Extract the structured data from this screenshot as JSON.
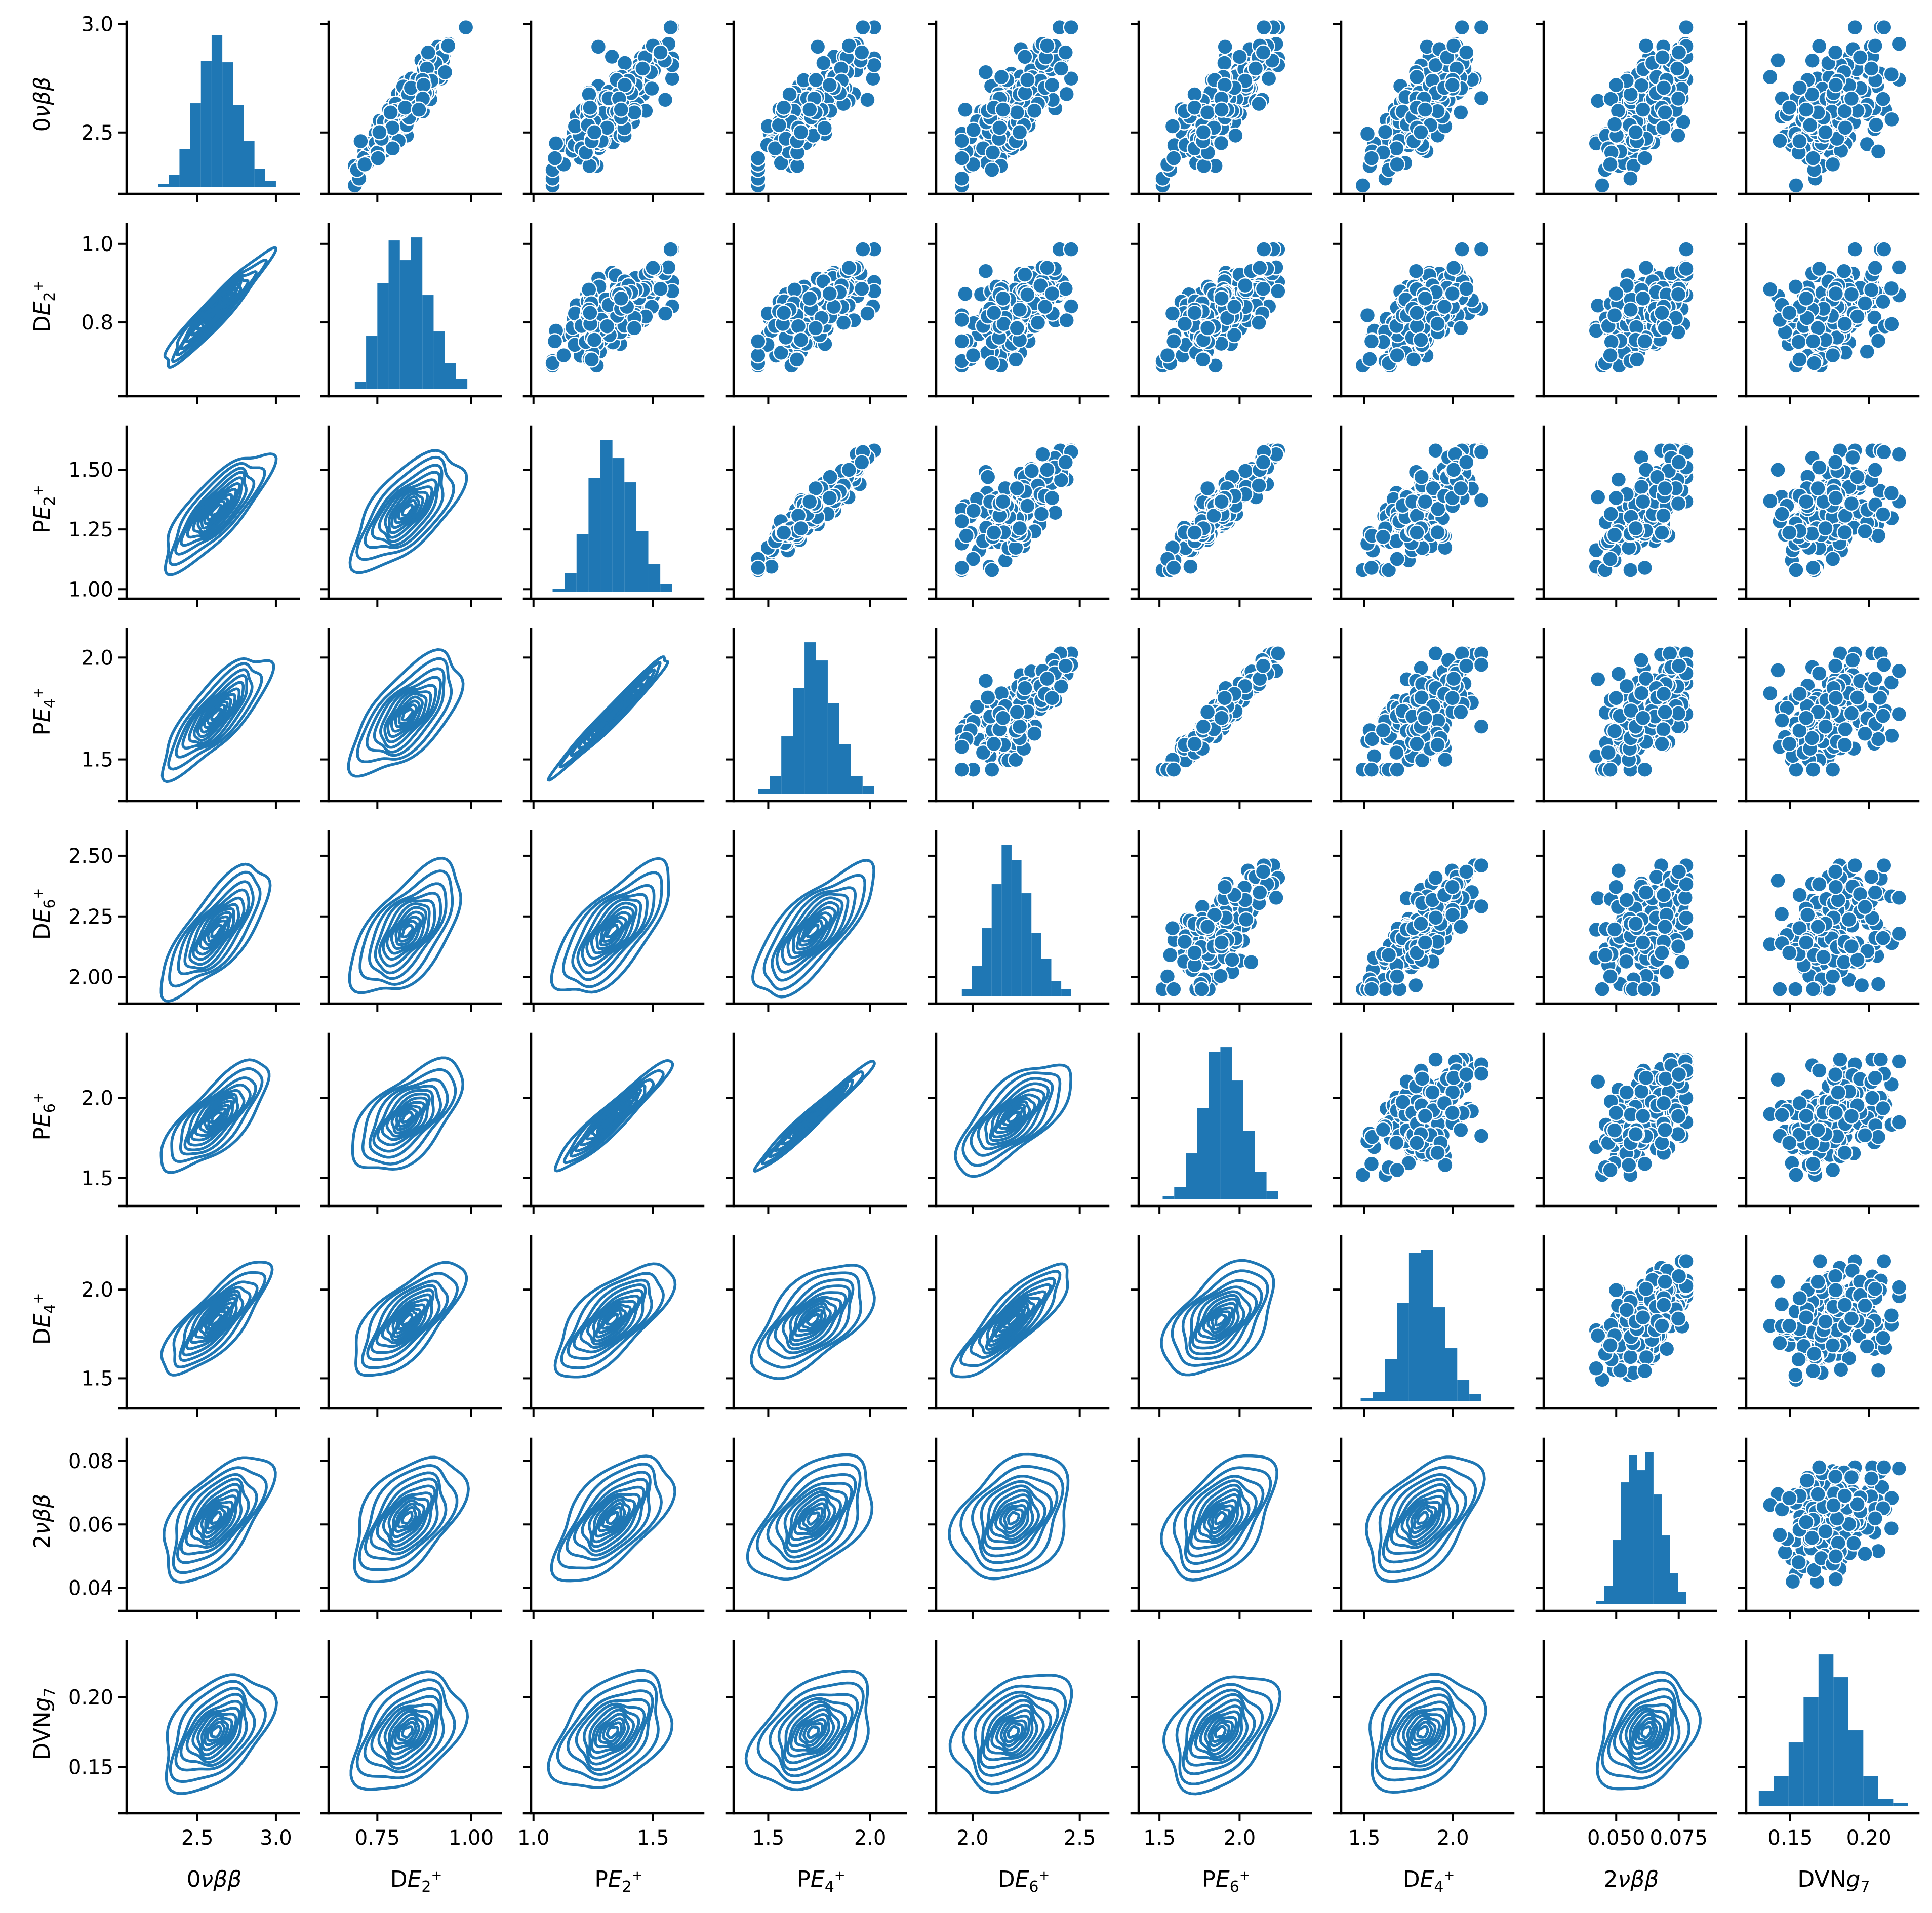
{
  "figure": {
    "color": "#1f77b4",
    "variables": [
      {
        "id": "0vbb",
        "label": "0νββ",
        "min": 2.25,
        "max": 3.0,
        "ymin": 2.25,
        "ymax": 3.01,
        "xmin": 2.05,
        "xmax": 3.1,
        "yticks": [
          2.5,
          3.0
        ],
        "xticks": [
          2.5,
          3.0
        ],
        "ytick_labels": [
          "2.5",
          "3.0"
        ],
        "xtick_labels": [
          "2.5",
          "3.0"
        ]
      },
      {
        "id": "DE2",
        "label": "DE2+",
        "min": 0.69,
        "max": 0.99,
        "ymin": 0.63,
        "ymax": 1.05,
        "xmin": 0.62,
        "xmax": 1.06,
        "yticks": [
          0.8,
          1.0
        ],
        "xticks": [
          0.75,
          1.0
        ],
        "ytick_labels": [
          "0.8",
          "1.0"
        ],
        "xtick_labels": [
          "0.75",
          "1.00"
        ]
      },
      {
        "id": "PE2",
        "label": "PE2+",
        "min": 1.08,
        "max": 1.58,
        "ymin": 0.99,
        "ymax": 1.68,
        "xmin": 0.99,
        "xmax": 1.68,
        "yticks": [
          1.0,
          1.25,
          1.5
        ],
        "xticks": [
          1.0,
          1.5
        ],
        "ytick_labels": [
          "1.00",
          "1.25",
          "1.50"
        ],
        "xtick_labels": [
          "1.0",
          "1.5"
        ]
      },
      {
        "id": "PE4",
        "label": "PE4+",
        "min": 1.45,
        "max": 2.02,
        "ymin": 1.33,
        "ymax": 2.14,
        "xmin": 1.33,
        "xmax": 2.14,
        "yticks": [
          1.5,
          2.0
        ],
        "xticks": [
          1.5,
          2.0
        ],
        "ytick_labels": [
          "1.5",
          "2.0"
        ],
        "xtick_labels": [
          "1.5",
          "2.0"
        ]
      },
      {
        "id": "DE6",
        "label": "DE6+",
        "min": 1.95,
        "max": 2.46,
        "ymin": 1.92,
        "ymax": 2.6,
        "xmin": 1.83,
        "xmax": 2.6,
        "yticks": [
          2.0,
          2.25,
          2.5
        ],
        "xticks": [
          2.0,
          2.5
        ],
        "ytick_labels": [
          "2.00",
          "2.25",
          "2.50"
        ],
        "xtick_labels": [
          "2.0",
          "2.5"
        ]
      },
      {
        "id": "PE6",
        "label": "PE6+",
        "min": 1.52,
        "max": 2.24,
        "ymin": 1.37,
        "ymax": 2.4,
        "xmin": 1.37,
        "xmax": 2.4,
        "yticks": [
          1.5,
          2.0
        ],
        "xticks": [
          1.5,
          2.0
        ],
        "ytick_labels": [
          "1.5",
          "2.0"
        ],
        "xtick_labels": [
          "1.5",
          "2.0"
        ]
      },
      {
        "id": "DE4",
        "label": "DE4+",
        "min": 1.48,
        "max": 2.16,
        "ymin": 1.37,
        "ymax": 2.3,
        "xmin": 1.37,
        "xmax": 2.3,
        "yticks": [
          1.5,
          2.0
        ],
        "xticks": [
          1.5,
          2.0
        ],
        "ytick_labels": [
          "1.5",
          "2.0"
        ],
        "xtick_labels": [
          "1.5",
          "2.0"
        ]
      },
      {
        "id": "2vbb",
        "label": "2νββ",
        "min": 0.042,
        "max": 0.078,
        "ymin": 0.035,
        "ymax": 0.087,
        "xmin": 0.021,
        "xmax": 0.087,
        "yticks": [
          0.04,
          0.06,
          0.08
        ],
        "xticks": [
          0.05,
          0.075
        ],
        "ytick_labels": [
          "0.04",
          "0.06",
          "0.08"
        ],
        "xtick_labels": [
          "0.050",
          "0.075"
        ]
      },
      {
        "id": "DVNg7",
        "label": "DVNg7",
        "min": 0.13,
        "max": 0.225,
        "ymin": 0.122,
        "ymax": 0.24,
        "xmin": 0.122,
        "xmax": 0.227,
        "yticks": [
          0.15,
          0.2
        ],
        "xticks": [
          0.15,
          0.2
        ],
        "ytick_labels": [
          "0.15",
          "0.20"
        ],
        "xtick_labels": [
          "0.15",
          "0.20"
        ]
      }
    ],
    "histograms": [
      [
        0.02,
        0.08,
        0.25,
        0.55,
        0.83,
        1.0,
        0.82,
        0.54,
        0.3,
        0.12,
        0.04
      ],
      [
        0.05,
        0.35,
        0.7,
        0.98,
        0.85,
        1.0,
        0.62,
        0.38,
        0.17,
        0.07
      ],
      [
        0.02,
        0.12,
        0.38,
        0.75,
        1.0,
        0.88,
        0.72,
        0.4,
        0.18,
        0.05
      ],
      [
        0.03,
        0.12,
        0.38,
        0.7,
        1.0,
        0.88,
        0.6,
        0.33,
        0.12,
        0.05
      ],
      [
        0.05,
        0.2,
        0.45,
        0.74,
        1.0,
        0.9,
        0.68,
        0.42,
        0.25,
        0.1,
        0.05
      ],
      [
        0.02,
        0.08,
        0.3,
        0.6,
        0.97,
        1.0,
        0.78,
        0.45,
        0.18,
        0.05
      ],
      [
        0.02,
        0.06,
        0.28,
        0.65,
        0.98,
        1.0,
        0.62,
        0.35,
        0.14,
        0.05
      ],
      [
        0.02,
        0.12,
        0.42,
        0.8,
        0.98,
        0.88,
        1.0,
        0.72,
        0.45,
        0.2,
        0.08
      ],
      [
        0.1,
        0.2,
        0.42,
        0.72,
        1.0,
        0.85,
        0.5,
        0.2,
        0.05,
        0.02
      ]
    ]
  },
  "chart_data": {
    "type": "scatter",
    "description_kind": "pair plot (9x9 grid): upper = scatter, diagonal = histogram, lower = bivariate KDE contours",
    "variables": [
      "0νββ",
      "DE2+",
      "PE2+",
      "PE4+",
      "DE6+",
      "PE6+",
      "DE4+",
      "2νββ",
      "DVNg7"
    ],
    "means": [
      2.62,
      0.83,
      1.33,
      1.72,
      2.19,
      1.88,
      1.83,
      0.062,
      0.175
    ],
    "sds": [
      0.14,
      0.06,
      0.1,
      0.12,
      0.11,
      0.14,
      0.13,
      0.008,
      0.017
    ],
    "correlation": [
      [
        1.0,
        0.95,
        0.8,
        0.8,
        0.75,
        0.75,
        0.8,
        0.6,
        0.45
      ],
      [
        0.95,
        1.0,
        0.65,
        0.65,
        0.6,
        0.6,
        0.7,
        0.5,
        0.4
      ],
      [
        0.8,
        0.65,
        1.0,
        0.98,
        0.7,
        0.95,
        0.7,
        0.6,
        0.4
      ],
      [
        0.8,
        0.65,
        0.98,
        1.0,
        0.75,
        0.98,
        0.6,
        0.5,
        0.4
      ],
      [
        0.75,
        0.6,
        0.7,
        0.75,
        1.0,
        0.7,
        0.85,
        0.3,
        0.35
      ],
      [
        0.75,
        0.6,
        0.95,
        0.98,
        0.7,
        1.0,
        0.5,
        0.5,
        0.4
      ],
      [
        0.8,
        0.7,
        0.7,
        0.6,
        0.85,
        0.5,
        1.0,
        0.5,
        0.3
      ],
      [
        0.6,
        0.5,
        0.6,
        0.5,
        0.3,
        0.5,
        0.5,
        1.0,
        0.3
      ],
      [
        0.45,
        0.4,
        0.4,
        0.4,
        0.35,
        0.4,
        0.3,
        0.3,
        1.0
      ]
    ],
    "n_points_estimate": 200,
    "grid": false,
    "legend": "none"
  }
}
